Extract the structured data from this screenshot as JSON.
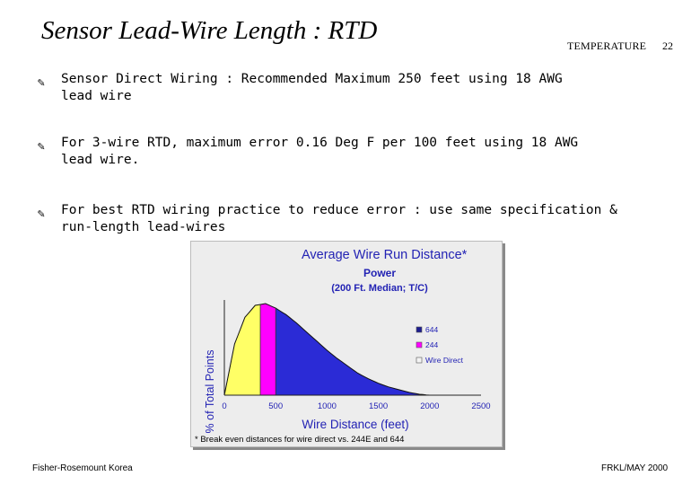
{
  "slide": {
    "title": "Sensor Lead-Wire Length : RTD",
    "header_label": "TEMPERATURE",
    "page_number": "22"
  },
  "bullets": [
    {
      "glyph": "✎",
      "line1": "Sensor Direct Wiring : Recommended Maximum 250 feet using 18 AWG",
      "line2": "lead wire"
    },
    {
      "glyph": "✎",
      "line1": "For 3-wire RTD, maximum error 0.16 Deg F per 100 feet using 18 AWG",
      "line2": "lead wire."
    },
    {
      "glyph": "✎",
      "line1": "For best RTD wiring practice to reduce error : use same specification &",
      "line2": "run-length  lead-wires"
    }
  ],
  "chart_data": {
    "type": "area",
    "title": "Average Wire Run Distance*",
    "subtitle_1": "Power",
    "subtitle_2": "(200 Ft. Median; T/C)",
    "xlabel": "Wire Distance (feet)",
    "ylabel": "% of Total Points",
    "footnote": "* Break even distances for wire direct vs. 244E and 644",
    "xlim": [
      0,
      2500
    ],
    "x_ticks": [
      "0",
      "500",
      "1000",
      "1500",
      "2000",
      "2500"
    ],
    "x": [
      0,
      100,
      200,
      300,
      400,
      500,
      600,
      700,
      800,
      900,
      1000,
      1100,
      1200,
      1300,
      1400,
      1500,
      1600,
      1700,
      1800,
      1900,
      2000
    ],
    "y": [
      0,
      56,
      85,
      98,
      100,
      95,
      88,
      79,
      69,
      59,
      49,
      40,
      32,
      24,
      18,
      13,
      9,
      6,
      3,
      1,
      0
    ],
    "regions": [
      {
        "name": "Wire Direct",
        "from": 0,
        "to": 350,
        "color": "#ffff66"
      },
      {
        "name": "244",
        "from": 350,
        "to": 500,
        "color": "#ff00ff"
      },
      {
        "name": "644",
        "from": 500,
        "to": 2000,
        "color": "#2b2bd6"
      }
    ],
    "legend": [
      {
        "name": "644",
        "color": "#1d1d8f"
      },
      {
        "name": "244",
        "color": "#ff00ff"
      },
      {
        "name": "Wire Direct",
        "color": "#f4f4f4"
      }
    ],
    "legend_position": "right"
  },
  "footer": {
    "left": "Fisher-Rosemount Korea",
    "right": "FRKL/MAY 2000"
  }
}
